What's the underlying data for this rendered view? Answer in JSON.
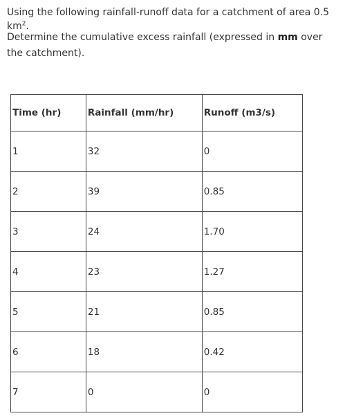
{
  "intro": {
    "text": "Using the following rainfall-runoff data for a catchment of area 0.5 km",
    "superscript": "2",
    "end": "."
  },
  "question": {
    "before": "Determine the cumulative excess rainfall (expressed in ",
    "bold": "mm",
    "after": " over the catchment)."
  },
  "table": {
    "headers": [
      "Time (hr)",
      "Rainfall (mm/hr)",
      "Runoff (m3/s)"
    ],
    "rows": [
      [
        "1",
        "32",
        "0"
      ],
      [
        "2",
        "39",
        "0.85"
      ],
      [
        "3",
        "24",
        "1.70"
      ],
      [
        "4",
        "23",
        "1.27"
      ],
      [
        "5",
        "21",
        "0.85"
      ],
      [
        "6",
        "18",
        "0.42"
      ],
      [
        "7",
        "0",
        "0"
      ]
    ]
  }
}
